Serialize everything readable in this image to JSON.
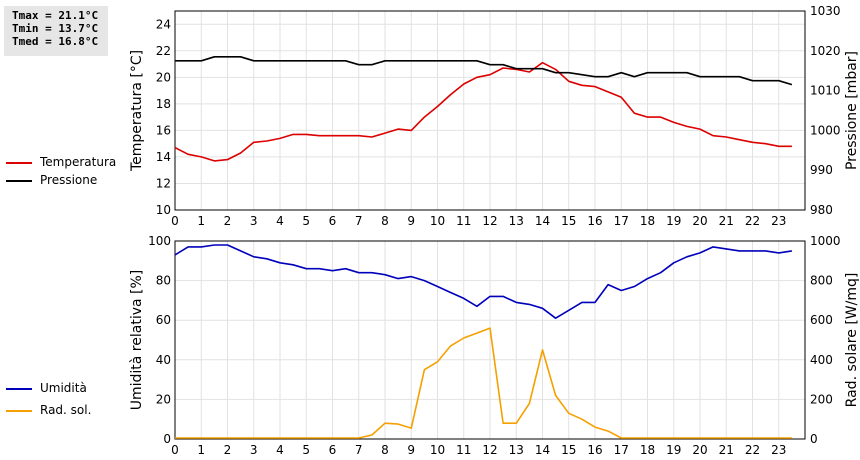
{
  "stats": {
    "tmax": "Tmax = 21.1°C",
    "tmin": "Tmin = 13.7°C",
    "tmed": "Tmed = 16.8°C"
  },
  "legend_top": [
    {
      "label": "Temperatura",
      "color": "#dd0000"
    },
    {
      "label": "Pressione",
      "color": "#000000"
    }
  ],
  "legend_bottom": [
    {
      "label": "Umidità",
      "color": "#0000bb"
    },
    {
      "label": "Rad. sol.",
      "color": "#f5a000"
    }
  ],
  "chart_data": [
    {
      "type": "line",
      "x_ticks": [
        0,
        1,
        2,
        3,
        4,
        5,
        6,
        7,
        8,
        9,
        10,
        11,
        12,
        13,
        14,
        15,
        16,
        17,
        18,
        19,
        20,
        21,
        22,
        23
      ],
      "xlim": [
        0,
        24
      ],
      "ylabel": "Temperatura [°C]",
      "ylim": [
        10,
        25
      ],
      "y_ticks": [
        10,
        12,
        14,
        16,
        18,
        20,
        22,
        24
      ],
      "y2label": "Pressione [mbar]",
      "y2lim": [
        980,
        1030
      ],
      "y2_ticks": [
        980,
        990,
        1000,
        1010,
        1020,
        1030
      ],
      "grid": true,
      "series": [
        {
          "name": "Temperatura",
          "axis": "left",
          "color": "#dd0000",
          "x": [
            0,
            0.5,
            1,
            1.5,
            2,
            2.5,
            3,
            3.5,
            4,
            4.5,
            5,
            5.5,
            6,
            6.5,
            7,
            7.5,
            8,
            8.5,
            9,
            9.5,
            10,
            10.5,
            11,
            11.5,
            12,
            12.5,
            13,
            13.5,
            14,
            14.5,
            15,
            15.5,
            16,
            16.5,
            17,
            17.5,
            18,
            18.5,
            19,
            19.5,
            20,
            20.5,
            21,
            21.5,
            22,
            22.5,
            23,
            23.5
          ],
          "y": [
            14.7,
            14.2,
            14.0,
            13.7,
            13.8,
            14.3,
            15.1,
            15.2,
            15.4,
            15.7,
            15.7,
            15.6,
            15.6,
            15.6,
            15.6,
            15.5,
            15.8,
            16.1,
            16.0,
            17.0,
            17.8,
            18.7,
            19.5,
            20.0,
            20.2,
            20.7,
            20.6,
            20.4,
            21.1,
            20.6,
            19.7,
            19.4,
            19.3,
            18.9,
            18.5,
            17.3,
            17.0,
            17.0,
            16.6,
            16.3,
            16.1,
            15.6,
            15.5,
            15.3,
            15.1,
            15.0,
            14.8,
            14.8
          ]
        },
        {
          "name": "Pressione",
          "axis": "right",
          "color": "#000000",
          "x": [
            0,
            1,
            1.5,
            2.5,
            3,
            6.5,
            7,
            7.5,
            8,
            11.5,
            12,
            12.5,
            13,
            14,
            14.5,
            15,
            16,
            16.5,
            17,
            17.5,
            18,
            19.5,
            20,
            21.5,
            22,
            23,
            23.5
          ],
          "y": [
            1017.5,
            1017.5,
            1018.5,
            1018.5,
            1017.5,
            1017.5,
            1016.5,
            1016.5,
            1017.5,
            1017.5,
            1016.5,
            1016.5,
            1015.5,
            1015.5,
            1014.5,
            1014.5,
            1013.5,
            1013.5,
            1014.5,
            1013.5,
            1014.5,
            1014.5,
            1013.5,
            1013.5,
            1012.5,
            1012.5,
            1011.5
          ]
        }
      ]
    },
    {
      "type": "line",
      "x_ticks": [
        0,
        1,
        2,
        3,
        4,
        5,
        6,
        7,
        8,
        9,
        10,
        11,
        12,
        13,
        14,
        15,
        16,
        17,
        18,
        19,
        20,
        21,
        22,
        23
      ],
      "xlim": [
        0,
        24
      ],
      "ylabel": "Umidità relativa [%]",
      "ylim": [
        0,
        100
      ],
      "y_ticks": [
        0,
        20,
        40,
        60,
        80,
        100
      ],
      "y2label": "Rad. solare [W/mq]",
      "y2lim": [
        0,
        1000
      ],
      "y2_ticks": [
        0,
        200,
        400,
        600,
        800,
        1000
      ],
      "grid": true,
      "series": [
        {
          "name": "Umidità",
          "axis": "left",
          "color": "#0000bb",
          "x": [
            0,
            0.5,
            1,
            1.5,
            2,
            2.5,
            3,
            3.5,
            4,
            4.5,
            5,
            5.5,
            6,
            6.5,
            7,
            7.5,
            8,
            8.5,
            9,
            9.5,
            10,
            10.5,
            11,
            11.5,
            12,
            12.5,
            13,
            13.5,
            14,
            14.5,
            15,
            15.5,
            16,
            16.5,
            17,
            17.5,
            18,
            18.5,
            19,
            19.5,
            20,
            20.5,
            21,
            21.5,
            22,
            22.5,
            23,
            23.5
          ],
          "y": [
            93,
            97,
            97,
            98,
            98,
            95,
            92,
            91,
            89,
            88,
            86,
            86,
            85,
            86,
            84,
            84,
            83,
            81,
            82,
            80,
            77,
            74,
            71,
            67,
            72,
            72,
            69,
            68,
            66,
            61,
            65,
            69,
            69,
            78,
            75,
            77,
            81,
            84,
            89,
            92,
            94,
            97,
            96,
            95,
            95,
            95,
            94,
            95
          ]
        },
        {
          "name": "Rad. sol.",
          "axis": "right",
          "color": "#f5a000",
          "x": [
            0,
            0.5,
            1,
            1.5,
            2,
            2.5,
            3,
            3.5,
            4,
            4.5,
            5,
            5.5,
            6,
            6.5,
            7,
            7.5,
            8,
            8.5,
            9,
            9.5,
            10,
            10.5,
            11,
            11.5,
            12,
            12.5,
            13,
            13.5,
            14,
            14.5,
            15,
            15.5,
            16,
            16.5,
            17,
            17.5,
            18,
            18.5,
            19,
            19.5,
            20,
            20.5,
            21,
            21.5,
            22,
            22.5,
            23,
            23.5
          ],
          "y": [
            5,
            5,
            5,
            5,
            5,
            5,
            5,
            5,
            5,
            5,
            5,
            5,
            5,
            5,
            5,
            20,
            80,
            75,
            55,
            350,
            390,
            470,
            510,
            535,
            560,
            80,
            80,
            180,
            450,
            220,
            130,
            100,
            60,
            40,
            5,
            5,
            5,
            5,
            5,
            5,
            5,
            5,
            5,
            5,
            5,
            5,
            5,
            5
          ]
        }
      ]
    }
  ]
}
